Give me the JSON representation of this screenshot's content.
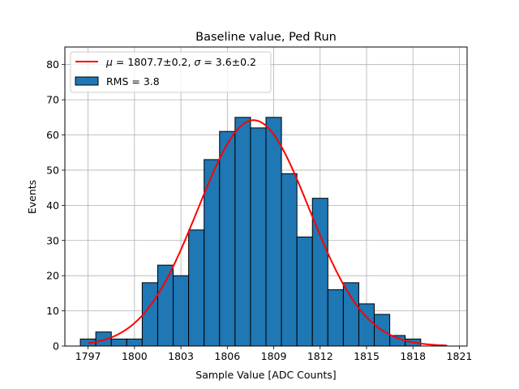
{
  "chart_data": {
    "type": "bar",
    "title": "Baseline value, Ped Run",
    "xlabel": "Sample Value [ADC Counts]",
    "ylabel": "Events",
    "xlim": [
      1795.5,
      1821.5
    ],
    "ylim": [
      0,
      85
    ],
    "grid": true,
    "legend_position": "top-left",
    "x_ticks": [
      1797,
      1800,
      1803,
      1806,
      1809,
      1812,
      1815,
      1818,
      1821
    ],
    "y_ticks": [
      0,
      10,
      20,
      30,
      40,
      50,
      60,
      70,
      80
    ],
    "bin_edges": [
      1796.5,
      1797.5,
      1798.5,
      1799.5,
      1800.5,
      1801.5,
      1802.5,
      1803.5,
      1804.5,
      1805.5,
      1806.5,
      1807.5,
      1808.5,
      1809.5,
      1810.5,
      1811.5,
      1812.5,
      1813.5,
      1814.5,
      1815.5,
      1816.5,
      1817.5,
      1818.5
    ],
    "bin_edges_note": "histogram bin edges in ADC counts",
    "counts": [
      2,
      4,
      2,
      2,
      18,
      23,
      20,
      33,
      53,
      61,
      65,
      62,
      65,
      49,
      31,
      42,
      16,
      18,
      12,
      9,
      3,
      2
    ],
    "fit": {
      "name": "gaussian",
      "mu": 1807.7,
      "sigma": 3.6,
      "amplitude": 64.2,
      "x_range": [
        1797.0,
        1820.2
      ],
      "color": "#ff0000"
    },
    "hist_color": "#1f77b4",
    "legend": [
      {
        "kind": "line",
        "label_html": "<i>μ</i> = 1807.7±0.2, <i>σ</i> = 3.6±0.2",
        "label": "μ = 1807.7±0.2, σ = 3.6±0.2"
      },
      {
        "kind": "patch",
        "label": "RMS = 3.8"
      }
    ]
  }
}
